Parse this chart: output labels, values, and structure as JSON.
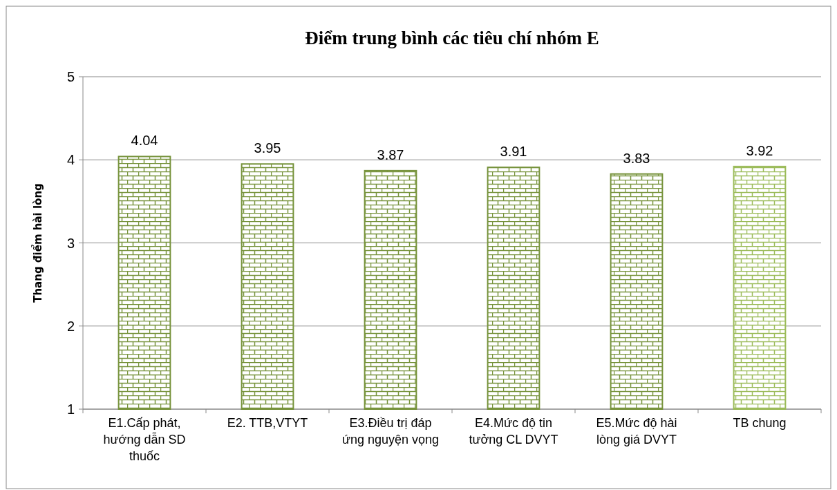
{
  "chart_data": {
    "type": "bar",
    "title": "Điểm trung bình các tiêu chí nhóm E",
    "ylabel": "Thang điểm hài lòng",
    "categories": [
      "E1.Cấp phát, hướng dẫn SD thuốc",
      "E2. TTB,VTYT",
      "E3.Điều trị đáp ứng nguyện vọng",
      "E4.Mức độ tin tưởng CL DVYT",
      "E5.Mức độ hài lòng giá DVYT",
      "TB chung"
    ],
    "values": [
      4.04,
      3.95,
      3.87,
      3.91,
      3.83,
      3.92
    ],
    "colors": [
      "#77933c",
      "#77933c",
      "#77933c",
      "#77933c",
      "#77933c",
      "#9bbb59"
    ],
    "ylim": [
      1,
      5
    ],
    "yticks": [
      1,
      2,
      3,
      4,
      5
    ],
    "grid": "y",
    "data_labels": true
  }
}
